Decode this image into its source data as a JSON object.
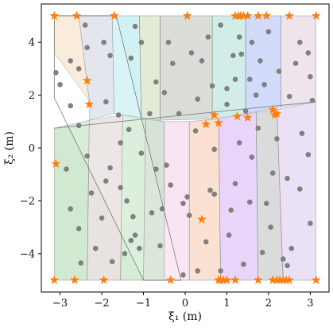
{
  "chart_data": {
    "type": "scatter",
    "xlabel": "ξ₁ (m)",
    "ylabel": "ξ₂ (m)",
    "xlim": [
      -3.45,
      3.45
    ],
    "ylim": [
      -5.45,
      5.45
    ],
    "xticks": [
      {
        "v": -3,
        "label": "−3"
      },
      {
        "v": -2,
        "label": "−2"
      },
      {
        "v": -1,
        "label": "−1"
      },
      {
        "v": 0,
        "label": "0"
      },
      {
        "v": 1,
        "label": "1"
      },
      {
        "v": 2,
        "label": "2"
      },
      {
        "v": 3,
        "label": "3"
      }
    ],
    "yticks": [
      {
        "v": -4,
        "label": "−4"
      },
      {
        "v": -2,
        "label": "−2"
      },
      {
        "v": 0,
        "label": "0"
      },
      {
        "v": 2,
        "label": "2"
      },
      {
        "v": 4,
        "label": "4"
      }
    ],
    "grid": false,
    "legend": "none",
    "colors": {
      "points": "#808080",
      "markers": "#ff7f0e",
      "region_edge": "#7a7a7a",
      "diagonal_line": "#8a8aa0"
    },
    "regions": [
      {
        "color": "#1a8a1a",
        "polygon": [
          [
            -3.14,
            -5
          ],
          [
            -2.35,
            -5
          ],
          [
            -2.3,
            1.05
          ],
          [
            -3.14,
            0.75
          ]
        ]
      },
      {
        "color": "#8c6e66",
        "polygon": [
          [
            -2.35,
            -5
          ],
          [
            -1.55,
            -5
          ],
          [
            -1.5,
            1.25
          ],
          [
            -2.3,
            1.05
          ]
        ]
      },
      {
        "color": "#2ca02c",
        "polygon": [
          [
            -1.55,
            -5
          ],
          [
            -1.0,
            -5
          ],
          [
            -0.95,
            1.1
          ],
          [
            -1.5,
            1.25
          ]
        ]
      },
      {
        "color": "#2c6e2c",
        "polygon": [
          [
            -1.0,
            -5
          ],
          [
            -0.5,
            -5
          ],
          [
            -0.5,
            1.0
          ],
          [
            -0.95,
            1.1
          ]
        ]
      },
      {
        "color": "#e377c2",
        "polygon": [
          [
            -0.5,
            -5
          ],
          [
            0.1,
            -5
          ],
          [
            0.1,
            1.0
          ],
          [
            -0.5,
            1.0
          ]
        ]
      },
      {
        "color": "#e86a1a",
        "polygon": [
          [
            0.1,
            -5
          ],
          [
            0.85,
            -5
          ],
          [
            0.8,
            1.1
          ],
          [
            0.1,
            1.0
          ]
        ]
      },
      {
        "color": "#8a2be2",
        "polygon": [
          [
            0.85,
            -5
          ],
          [
            1.75,
            -5
          ],
          [
            1.7,
            1.35
          ],
          [
            0.8,
            1.1
          ]
        ]
      },
      {
        "color": "#4d4d4d",
        "polygon": [
          [
            1.75,
            -5
          ],
          [
            2.35,
            -5
          ],
          [
            2.2,
            1.45
          ],
          [
            1.7,
            1.35
          ]
        ]
      },
      {
        "color": "#9a6ad0",
        "polygon": [
          [
            2.35,
            -5
          ],
          [
            3.14,
            -5
          ],
          [
            3.14,
            1.75
          ],
          [
            2.2,
            1.45
          ]
        ]
      },
      {
        "color": "#e08a2a",
        "polygon": [
          [
            -3.14,
            5
          ],
          [
            -2.55,
            5
          ],
          [
            -2.3,
            1.8
          ],
          [
            -3.14,
            3.6
          ]
        ]
      },
      {
        "color": "#556b8e",
        "polygon": [
          [
            -2.55,
            5
          ],
          [
            -1.75,
            5
          ],
          [
            -1.7,
            1.3
          ],
          [
            -2.3,
            1.05
          ],
          [
            -2.3,
            1.8
          ]
        ]
      },
      {
        "color": "#17becf",
        "polygon": [
          [
            -1.75,
            5
          ],
          [
            -1.1,
            5
          ],
          [
            -1.05,
            1.15
          ],
          [
            -1.7,
            1.3
          ]
        ]
      },
      {
        "color": "#6a9a2c",
        "polygon": [
          [
            -1.1,
            5
          ],
          [
            -0.6,
            5
          ],
          [
            -0.6,
            1.05
          ],
          [
            -1.05,
            1.15
          ]
        ]
      },
      {
        "color": "#4a5a3a",
        "polygon": [
          [
            -0.6,
            5
          ],
          [
            0.65,
            5
          ],
          [
            0.65,
            1.1
          ],
          [
            -0.6,
            1.05
          ]
        ]
      },
      {
        "color": "#1f9e8a",
        "polygon": [
          [
            0.65,
            5
          ],
          [
            1.45,
            5
          ],
          [
            1.45,
            1.3
          ],
          [
            0.65,
            1.1
          ]
        ]
      },
      {
        "color": "#1f4ce8",
        "polygon": [
          [
            1.45,
            5
          ],
          [
            2.3,
            5
          ],
          [
            2.3,
            1.55
          ],
          [
            1.45,
            1.3
          ]
        ]
      },
      {
        "color": "#b07aa0",
        "polygon": [
          [
            2.3,
            5
          ],
          [
            3.14,
            5
          ],
          [
            3.14,
            1.75
          ],
          [
            2.3,
            1.55
          ]
        ]
      }
    ],
    "diagonal_line": [
      [
        -3.14,
        0.75
      ],
      [
        3.14,
        1.75
      ]
    ],
    "boundary_wedge": [
      [
        -3.14,
        5
      ],
      [
        -1.65,
        5
      ],
      [
        -0.1,
        -5
      ],
      [
        -1.0,
        -5
      ],
      [
        -3.14,
        1.9
      ]
    ],
    "points": [
      [
        -3.1,
        2.85
      ],
      [
        -3.0,
        2.4
      ],
      [
        -2.75,
        3.3
      ],
      [
        -2.75,
        1.6
      ],
      [
        -2.55,
        3.0
      ],
      [
        -2.4,
        4.65
      ],
      [
        -2.35,
        3.8
      ],
      [
        -1.95,
        4.0
      ],
      [
        -1.9,
        1.75
      ],
      [
        -1.8,
        3.5
      ],
      [
        -1.6,
        1.25
      ],
      [
        -1.3,
        3.4
      ],
      [
        -1.2,
        4.6
      ],
      [
        -1.05,
        4.0
      ],
      [
        -0.85,
        1.3
      ],
      [
        -0.7,
        2.5
      ],
      [
        -0.5,
        2.1
      ],
      [
        -0.4,
        4.0
      ],
      [
        -0.3,
        3.2
      ],
      [
        -0.15,
        1.3
      ],
      [
        0.15,
        3.6
      ],
      [
        0.3,
        1.85
      ],
      [
        0.4,
        3.3
      ],
      [
        0.55,
        4.2
      ],
      [
        0.65,
        2.35
      ],
      [
        0.85,
        4.65
      ],
      [
        1.0,
        2.25
      ],
      [
        1.0,
        1.65
      ],
      [
        1.15,
        3.5
      ],
      [
        1.2,
        2.6
      ],
      [
        1.3,
        4.2
      ],
      [
        1.35,
        3.55
      ],
      [
        1.45,
        1.4
      ],
      [
        1.55,
        2.6
      ],
      [
        1.6,
        4.0
      ],
      [
        1.7,
        2.0
      ],
      [
        1.8,
        3.3
      ],
      [
        1.9,
        2.4
      ],
      [
        2.0,
        4.4
      ],
      [
        2.25,
        2.9
      ],
      [
        2.5,
        1.95
      ],
      [
        2.65,
        3.2
      ],
      [
        2.75,
        4.0
      ],
      [
        2.95,
        3.6
      ],
      [
        3.0,
        2.7
      ],
      [
        3.05,
        1.8
      ],
      [
        -2.85,
        -0.8
      ],
      [
        -2.75,
        -2.3
      ],
      [
        -2.55,
        0.85
      ],
      [
        -2.55,
        -3.05
      ],
      [
        -2.5,
        -4.35
      ],
      [
        -2.35,
        -0.3
      ],
      [
        -2.25,
        -1.7
      ],
      [
        -2.15,
        -3.8
      ],
      [
        -2.0,
        -2.65
      ],
      [
        -1.9,
        -1.25
      ],
      [
        -1.8,
        -0.75
      ],
      [
        -1.75,
        -4.3
      ],
      [
        -1.55,
        0.2
      ],
      [
        -1.55,
        -1.5
      ],
      [
        -1.4,
        -2.0
      ],
      [
        -1.35,
        0.7
      ],
      [
        -1.25,
        -2.6
      ],
      [
        -1.3,
        -3.5
      ],
      [
        -1.45,
        -4.0
      ],
      [
        -1.2,
        -3.3
      ],
      [
        -1.1,
        -3.8
      ],
      [
        -1.05,
        -0.2
      ],
      [
        -0.8,
        -2.45
      ],
      [
        -0.7,
        -0.8
      ],
      [
        -0.6,
        -3.7
      ],
      [
        -0.55,
        -2.3
      ],
      [
        -0.45,
        -0.65
      ],
      [
        -0.35,
        -1.4
      ],
      [
        -0.05,
        -4.8
      ],
      [
        0.05,
        -1.85
      ],
      [
        -0.05,
        -2.1
      ],
      [
        0.1,
        -2.55
      ],
      [
        0.25,
        0.65
      ],
      [
        0.3,
        -4.65
      ],
      [
        0.5,
        -3.55
      ],
      [
        0.6,
        -1.6
      ],
      [
        0.7,
        -1.75
      ],
      [
        0.7,
        -0.05
      ],
      [
        0.85,
        -4.65
      ],
      [
        1.05,
        -3.3
      ],
      [
        1.1,
        -2.35
      ],
      [
        1.2,
        -1.35
      ],
      [
        1.3,
        0.2
      ],
      [
        1.4,
        -4.4
      ],
      [
        1.55,
        -2.05
      ],
      [
        1.6,
        -0.35
      ],
      [
        1.75,
        0.75
      ],
      [
        1.85,
        -3.95
      ],
      [
        1.95,
        -2.1
      ],
      [
        2.1,
        -0.95
      ],
      [
        2.05,
        -3.0
      ],
      [
        2.2,
        0.35
      ],
      [
        2.35,
        -4.2
      ],
      [
        2.45,
        -1.15
      ],
      [
        2.45,
        -4.45
      ],
      [
        2.55,
        -3.8
      ],
      [
        2.75,
        -1.55
      ],
      [
        2.8,
        0.55
      ],
      [
        2.95,
        -0.25
      ],
      [
        3.0,
        -2.85
      ]
    ],
    "markers": [
      [
        -3.14,
        5.0
      ],
      [
        -2.6,
        5.0
      ],
      [
        -1.7,
        5.0
      ],
      [
        0.05,
        5.0
      ],
      [
        1.2,
        5.0
      ],
      [
        1.27,
        5.0
      ],
      [
        1.33,
        5.0
      ],
      [
        1.4,
        5.0
      ],
      [
        1.5,
        5.0
      ],
      [
        1.75,
        5.0
      ],
      [
        1.95,
        5.0
      ],
      [
        2.5,
        5.0
      ],
      [
        3.14,
        5.0
      ],
      [
        -2.35,
        2.55
      ],
      [
        -2.3,
        1.65
      ],
      [
        -3.1,
        -0.6
      ],
      [
        0.5,
        0.9
      ],
      [
        0.7,
        1.25
      ],
      [
        0.8,
        0.95
      ],
      [
        1.25,
        1.2
      ],
      [
        1.5,
        1.15
      ],
      [
        2.1,
        1.45
      ],
      [
        2.15,
        1.25
      ],
      [
        2.2,
        1.3
      ],
      [
        0.4,
        -2.7
      ],
      [
        -3.14,
        -5.0
      ],
      [
        -2.65,
        -5.0
      ],
      [
        -1.95,
        -5.0
      ],
      [
        -0.35,
        -5.0
      ],
      [
        0.8,
        -5.0
      ],
      [
        0.85,
        -5.0
      ],
      [
        0.92,
        -5.0
      ],
      [
        1.0,
        -5.0
      ],
      [
        1.2,
        -5.0
      ],
      [
        1.75,
        -5.0
      ],
      [
        2.1,
        -5.0
      ],
      [
        2.2,
        -5.0
      ],
      [
        2.27,
        -5.0
      ],
      [
        2.35,
        -5.0
      ],
      [
        2.42,
        -5.0
      ],
      [
        2.5,
        -5.0
      ],
      [
        3.14,
        -5.0
      ]
    ]
  }
}
